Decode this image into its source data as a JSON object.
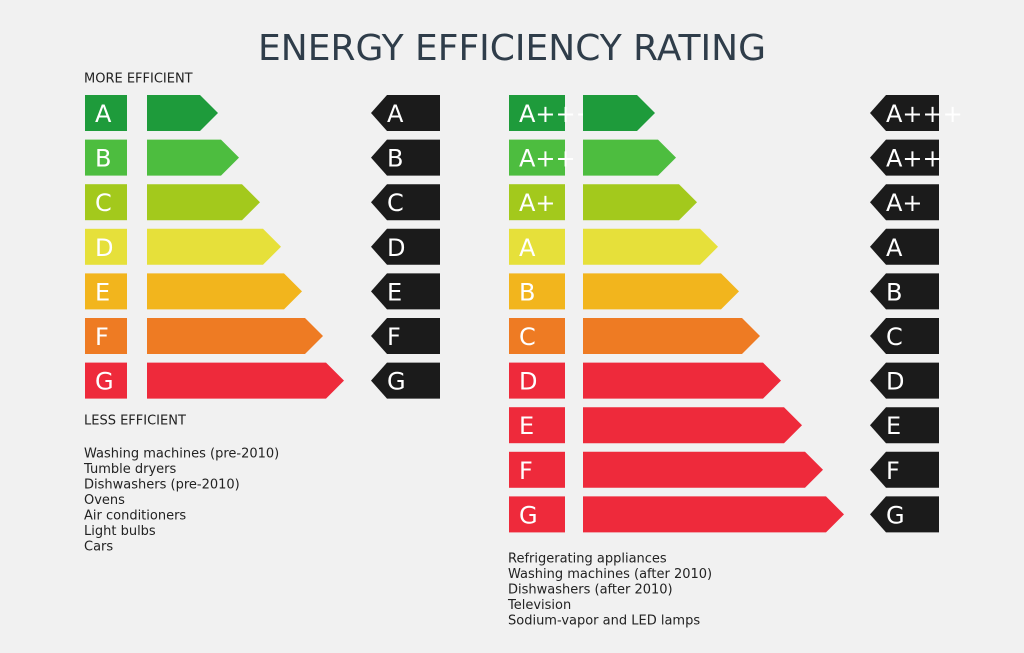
{
  "title": "ENERGY EFFICIENCY RATING",
  "left_scale": {
    "top_label": "MORE EFFICIENT",
    "bottom_label": "LESS EFFICIENT",
    "classes": [
      {
        "label": "A",
        "color": "#1e9b3b"
      },
      {
        "label": "B",
        "color": "#4dbd3f"
      },
      {
        "label": "C",
        "color": "#a3c91c"
      },
      {
        "label": "D",
        "color": "#e6e03a"
      },
      {
        "label": "E",
        "color": "#f2b51d"
      },
      {
        "label": "F",
        "color": "#ee7b23"
      },
      {
        "label": "G",
        "color": "#ee2a3b"
      }
    ],
    "items": [
      "Washing machines (pre-2010)",
      "Tumble dryers",
      "Dishwashers (pre-2010)",
      "Ovens",
      "Air conditioners",
      "Light bulbs",
      "Cars"
    ]
  },
  "right_scale": {
    "classes": [
      {
        "label": "A+++",
        "color": "#1e9b3b"
      },
      {
        "label": "A++",
        "color": "#4dbd3f"
      },
      {
        "label": "A+",
        "color": "#a3c91c"
      },
      {
        "label": "A",
        "color": "#e6e03a"
      },
      {
        "label": "B",
        "color": "#f2b51d"
      },
      {
        "label": "C",
        "color": "#ee7b23"
      },
      {
        "label": "D",
        "color": "#ee2a3b"
      },
      {
        "label": "E",
        "color": "#ee2a3b"
      },
      {
        "label": "F",
        "color": "#ee2a3b"
      },
      {
        "label": "G",
        "color": "#ee2a3b"
      }
    ],
    "items": [
      "Refrigerating appliances",
      "Washing machines (after 2010)",
      "Dishwashers (after 2010)",
      "Television",
      "Sodium-vapor and LED lamps"
    ]
  }
}
